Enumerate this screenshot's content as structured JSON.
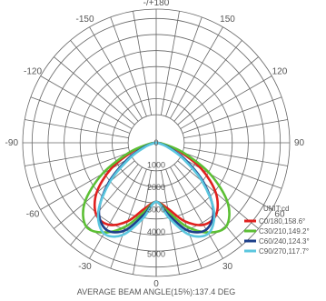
{
  "chart_data": {
    "type": "polar-line",
    "unit_label": "UNIT:cd",
    "footer": "AVERAGE BEAM ANGLE(15%):137.4 DEG",
    "angle_labels": [
      {
        "angle": 180,
        "text": "-/+180"
      },
      {
        "angle": -150,
        "text": "-150"
      },
      {
        "angle": 150,
        "text": "150"
      },
      {
        "angle": -120,
        "text": "-120"
      },
      {
        "angle": 120,
        "text": "120"
      },
      {
        "angle": -90,
        "text": "-90"
      },
      {
        "angle": 90,
        "text": "90"
      },
      {
        "angle": -60,
        "text": "-60"
      },
      {
        "angle": 60,
        "text": "60"
      },
      {
        "angle": -30,
        "text": "-30"
      },
      {
        "angle": 30,
        "text": "30"
      },
      {
        "angle": 0,
        "text": "0"
      }
    ],
    "radial_ticks": [
      0,
      1000,
      2000,
      3000,
      4000,
      5000
    ],
    "radial_tick_labels": [
      "0",
      "1000",
      "2000",
      "3000",
      "4000",
      "5000"
    ],
    "radial_max": 6000,
    "series": [
      {
        "name": "C0/180,158.6°",
        "color": "#e0201e",
        "points": [
          [
            0,
            2650
          ],
          [
            10,
            3000
          ],
          [
            20,
            3750
          ],
          [
            30,
            4250
          ],
          [
            40,
            4200
          ],
          [
            50,
            3500
          ],
          [
            60,
            2350
          ],
          [
            70,
            1100
          ],
          [
            80,
            300
          ],
          [
            85,
            80
          ],
          [
            90,
            0
          ],
          [
            -10,
            3000
          ],
          [
            -20,
            3750
          ],
          [
            -30,
            4250
          ],
          [
            -40,
            4200
          ],
          [
            -50,
            3500
          ],
          [
            -60,
            2350
          ],
          [
            -70,
            1100
          ],
          [
            -80,
            300
          ],
          [
            -85,
            80
          ],
          [
            -90,
            0
          ]
        ]
      },
      {
        "name": "C30/210,149.2°",
        "color": "#5cbf34",
        "points": [
          [
            0,
            2650
          ],
          [
            10,
            3150
          ],
          [
            20,
            4000
          ],
          [
            30,
            4650
          ],
          [
            40,
            4900
          ],
          [
            50,
            4200
          ],
          [
            60,
            2800
          ],
          [
            70,
            1300
          ],
          [
            80,
            350
          ],
          [
            85,
            100
          ],
          [
            90,
            0
          ],
          [
            -10,
            3150
          ],
          [
            -20,
            4000
          ],
          [
            -30,
            4650
          ],
          [
            -40,
            4900
          ],
          [
            -50,
            4200
          ],
          [
            -60,
            2800
          ],
          [
            -70,
            1300
          ],
          [
            -80,
            350
          ],
          [
            -85,
            100
          ],
          [
            -90,
            0
          ]
        ]
      },
      {
        "name": "C60/240,124.3°",
        "color": "#1c3f8a",
        "points": [
          [
            0,
            2650
          ],
          [
            10,
            3300
          ],
          [
            20,
            4200
          ],
          [
            30,
            4500
          ],
          [
            40,
            4000
          ],
          [
            50,
            2800
          ],
          [
            60,
            1500
          ],
          [
            70,
            600
          ],
          [
            80,
            150
          ],
          [
            90,
            0
          ],
          [
            -10,
            3300
          ],
          [
            -20,
            4200
          ],
          [
            -30,
            4500
          ],
          [
            -40,
            4000
          ],
          [
            -50,
            2800
          ],
          [
            -60,
            1500
          ],
          [
            -70,
            600
          ],
          [
            -80,
            150
          ],
          [
            -90,
            0
          ]
        ]
      },
      {
        "name": "C90/270,117.7°",
        "color": "#5bc6de",
        "points": [
          [
            0,
            2650
          ],
          [
            10,
            3450
          ],
          [
            20,
            4400
          ],
          [
            30,
            4700
          ],
          [
            40,
            4050
          ],
          [
            50,
            2700
          ],
          [
            60,
            1350
          ],
          [
            70,
            500
          ],
          [
            80,
            120
          ],
          [
            90,
            0
          ],
          [
            -10,
            3450
          ],
          [
            -20,
            4400
          ],
          [
            -30,
            4700
          ],
          [
            -40,
            4050
          ],
          [
            -50,
            2700
          ],
          [
            -60,
            1350
          ],
          [
            -70,
            500
          ],
          [
            -80,
            120
          ],
          [
            -90,
            0
          ]
        ]
      }
    ]
  }
}
